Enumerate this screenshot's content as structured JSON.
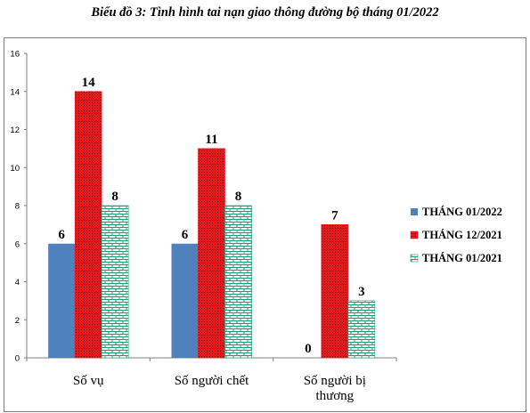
{
  "chart_data": {
    "type": "bar",
    "title": "Biểu đồ 3: Tình hình tai nạn giao thông đường bộ tháng 01/2022",
    "categories": [
      "Số vụ",
      "Số người chết",
      "Số người bị thương"
    ],
    "category_lines": [
      [
        "Số vụ"
      ],
      [
        "Số người chết"
      ],
      [
        "Số người bị",
        "thương"
      ]
    ],
    "series": [
      {
        "name": "THÁNG 01/2022",
        "values": [
          6,
          6,
          0
        ],
        "color": "#4F81BD",
        "pattern": "solid"
      },
      {
        "name": "THÁNG 12/2021",
        "values": [
          14,
          11,
          7
        ],
        "color": "#E31A1C",
        "pattern": "dots"
      },
      {
        "name": "THÁNG 01/2021",
        "values": [
          8,
          8,
          3
        ],
        "color": "#1E9E72",
        "pattern": "brick"
      }
    ],
    "data_labels": [
      [
        "6",
        "6",
        "0"
      ],
      [
        "14",
        "11",
        "7"
      ],
      [
        "8",
        "8",
        "3"
      ]
    ],
    "ylim": [
      0,
      16
    ],
    "yticks": [
      0,
      2,
      4,
      6,
      8,
      10,
      12,
      14,
      16
    ],
    "grid": false,
    "legend": "right"
  }
}
